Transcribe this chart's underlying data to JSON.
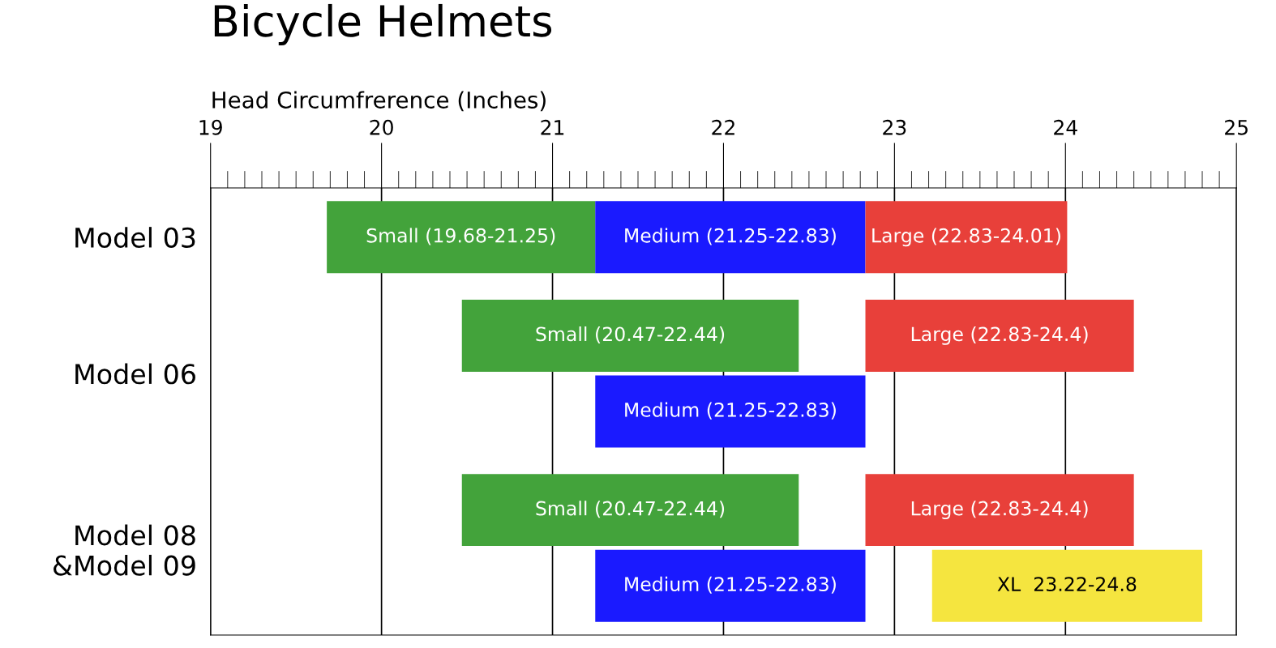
{
  "chart_data": {
    "type": "bar",
    "orientation": "horizontal",
    "title": "Bicycle Helmets",
    "xlabel": "Head Circumfrerence (Inches)",
    "categories": [
      "Model 03",
      "Model 06",
      "Model 08\n&Model 09"
    ],
    "series": [
      {
        "color": "#43a33b",
        "base": [
          19.68,
          20.47,
          20.47
        ],
        "values": [
          1.57,
          1.97,
          1.97
        ],
        "value_labels": [
          "Small (19.68-21.25)",
          "Small (20.47-22.44)",
          "Small (20.47-22.44)"
        ]
      },
      {
        "color": "#1a1aff",
        "base": [
          21.25,
          21.25,
          21.25
        ],
        "values": [
          1.58,
          1.58,
          1.58
        ],
        "value_labels": [
          "Medium (21.25-22.83)",
          "Medium (21.25-22.83)",
          "Medium (21.25-22.83)"
        ]
      },
      {
        "color": "#e8403a",
        "base": [
          22.83,
          22.83,
          22.83
        ],
        "values": [
          1.18,
          1.57,
          1.57
        ],
        "value_labels": [
          "Large (22.83-24.01)",
          "Large (22.83-24.4)",
          "Large (22.83-24.4)"
        ]
      },
      {
        "color": "#f5e53f",
        "base": [
          null,
          null,
          23.22
        ],
        "values": [
          null,
          null,
          1.58
        ],
        "value_labels": [
          null,
          null,
          "XL  23.22-24.8"
        ]
      }
    ],
    "xlim": [
      19,
      25
    ],
    "xticks": [
      19,
      20,
      21,
      22,
      23,
      24,
      25
    ],
    "grid": "x"
  }
}
